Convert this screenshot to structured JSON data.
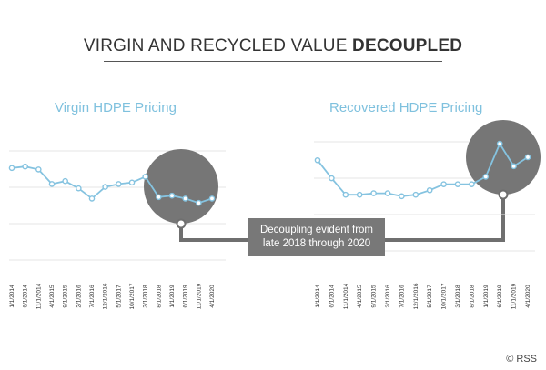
{
  "title": {
    "prefix": "VIRGIN AND RECYCLED VALUE ",
    "bold": "DECOUPLED"
  },
  "callout": {
    "line1": "Decoupling evident from",
    "line2": "late 2018 through 2020"
  },
  "copyright": "© RSS",
  "colors": {
    "line": "#85c3e0",
    "grid": "#e6e6e6",
    "highlight": "#6f6f6f",
    "connector": "#6f6f6f",
    "title": "#7fc1de"
  },
  "chart_data": [
    {
      "type": "line",
      "title": "Virgin HDPE Pricing",
      "grid": true,
      "categories": [
        "1/1/2014",
        "6/1/2014",
        "11/1/2014",
        "4/1/2015",
        "9/1/2015",
        "2/1/2016",
        "7/1/2016",
        "12/1/2016",
        "5/1/2017",
        "10/1/2017",
        "3/1/2018",
        "8/1/2018",
        "1/1/2019",
        "6/1/2019",
        "11/1/2019",
        "4/1/2020"
      ],
      "values": [
        72,
        73,
        71,
        61,
        63,
        58,
        51,
        59,
        61,
        62,
        66,
        52,
        53,
        51,
        48,
        51
      ],
      "highlight": "late 2018 through 2020",
      "ylim": [
        0,
        100
      ]
    },
    {
      "type": "line",
      "title": "Recovered HDPE Pricing",
      "grid": true,
      "categories": [
        "1/1/2014",
        "6/1/2014",
        "11/1/2014",
        "4/1/2015",
        "9/1/2015",
        "2/1/2016",
        "7/1/2016",
        "12/1/2016",
        "5/1/2017",
        "10/1/2017",
        "3/1/2018",
        "8/1/2018",
        "1/1/2019",
        "6/1/2019",
        "11/1/2019",
        "4/1/2020"
      ],
      "values": [
        75,
        63,
        52,
        52,
        53,
        53,
        51,
        52,
        55,
        59,
        59,
        59,
        64,
        86,
        71,
        77
      ],
      "highlight": "late 2018 through 2020",
      "ylim": [
        0,
        100
      ]
    }
  ]
}
